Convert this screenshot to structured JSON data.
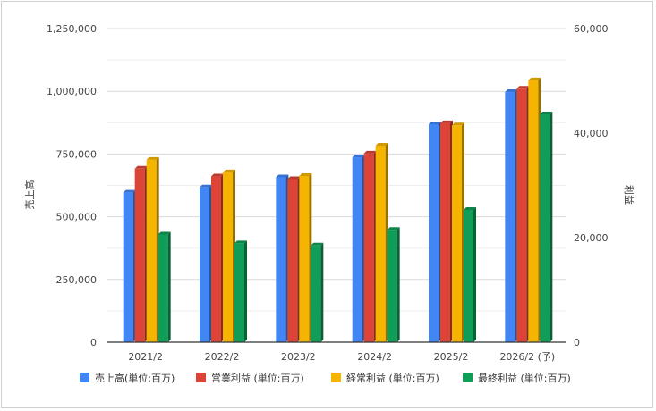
{
  "chart_data": {
    "type": "bar",
    "title": "",
    "categories": [
      "2021/2",
      "2022/2",
      "2023/2",
      "2024/2",
      "2025/2",
      "2026/2 (予)"
    ],
    "left_axis": {
      "label": "売上高",
      "ylim": [
        0,
        1250000
      ],
      "ticks": [
        "0",
        "250,000",
        "500,000",
        "750,000",
        "1,000,000",
        "1,250,000"
      ]
    },
    "right_axis": {
      "label": "利益",
      "ylim": [
        0,
        60000
      ],
      "ticks": [
        "0",
        "20,000",
        "40,000",
        "60,000"
      ]
    },
    "series": [
      {
        "name": "売上高(単位:百万)",
        "axis": "left",
        "color": "#4285f4",
        "values": [
          596000,
          617000,
          657000,
          737000,
          869000,
          997000
        ]
      },
      {
        "name": "営業利益 (単位:百万)",
        "axis": "right",
        "color": "#db4437",
        "values": [
          33200,
          31700,
          31200,
          36100,
          41900,
          48500
        ]
      },
      {
        "name": "経常利益 (単位:百万)",
        "axis": "right",
        "color": "#f4b400",
        "values": [
          34900,
          32500,
          31800,
          37600,
          41500,
          50100
        ]
      },
      {
        "name": "最終利益 (単位:百万)",
        "axis": "right",
        "color": "#0f9d58",
        "values": [
          20600,
          18900,
          18500,
          21500,
          25300,
          43600
        ]
      }
    ],
    "grid": true,
    "legend_position": "bottom"
  }
}
